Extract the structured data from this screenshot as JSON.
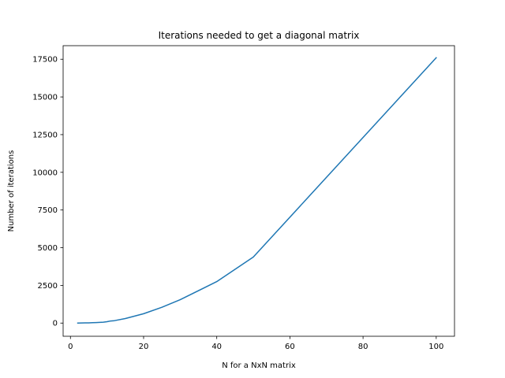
{
  "chart_data": {
    "type": "line",
    "title": "Iterations needed to get a diagonal matrix",
    "xlabel": "N for a NxN matrix",
    "ylabel": "Number of iterations",
    "xlim": [
      -2,
      105
    ],
    "ylim": [
      -875,
      18400
    ],
    "xticks": [
      0,
      20,
      40,
      60,
      80,
      100
    ],
    "yticks": [
      0,
      2500,
      5000,
      7500,
      10000,
      12500,
      15000,
      17500
    ],
    "grid": false,
    "series": [
      {
        "color": "#1f77b4",
        "x": [
          2,
          3,
          4,
          5,
          6,
          7,
          8,
          9,
          10,
          11,
          12,
          15,
          20,
          25,
          30,
          40,
          50,
          100
        ],
        "y": [
          2,
          5,
          10,
          16,
          24,
          35,
          47,
          60,
          90,
          140,
          160,
          300,
          620,
          1050,
          1550,
          2750,
          4380,
          17600
        ]
      }
    ]
  }
}
